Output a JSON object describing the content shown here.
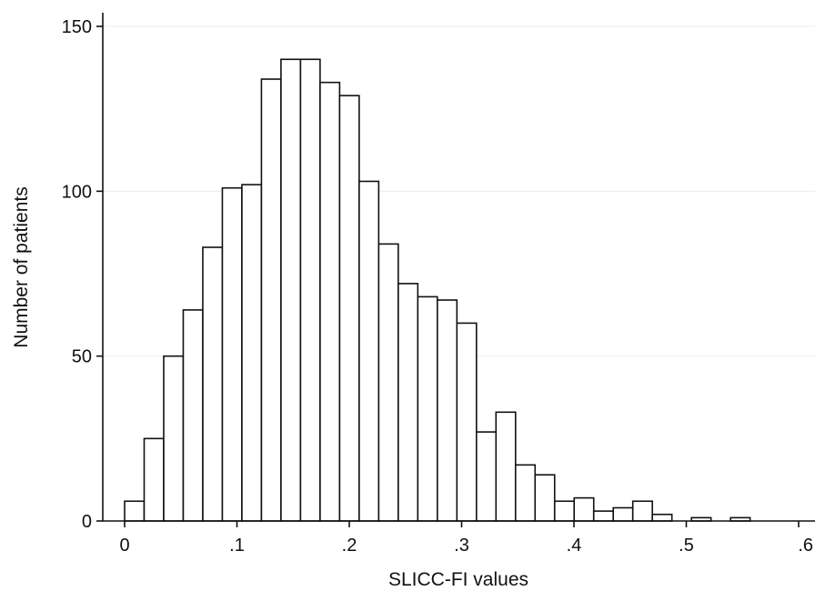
{
  "chart_data": {
    "type": "bar",
    "title": "",
    "xlabel": "SLICC-FI values",
    "ylabel": "Number of patients",
    "bin_width": 0.0174,
    "bin_start": 0,
    "values": [
      6,
      25,
      50,
      64,
      83,
      101,
      102,
      134,
      140,
      140,
      133,
      129,
      103,
      84,
      72,
      68,
      67,
      60,
      27,
      33,
      17,
      14,
      6,
      7,
      3,
      4,
      6,
      2,
      0,
      1,
      0,
      1
    ],
    "xlim": [
      -0.015,
      0.62
    ],
    "ylim": [
      0,
      153
    ],
    "xticks": [
      0,
      0.1,
      0.2,
      0.3,
      0.4,
      0.5,
      0.6
    ],
    "xtick_labels": [
      "0",
      ".1",
      ".2",
      ".3",
      ".4",
      ".5",
      ".6"
    ],
    "yticks": [
      0,
      50,
      100,
      150
    ],
    "ytick_labels": [
      "0",
      "50",
      "100",
      "150"
    ],
    "grid": true,
    "colors": {
      "bar_fill": "#ffffff",
      "bar_edge": "#111111",
      "grid": "#ececec"
    }
  }
}
